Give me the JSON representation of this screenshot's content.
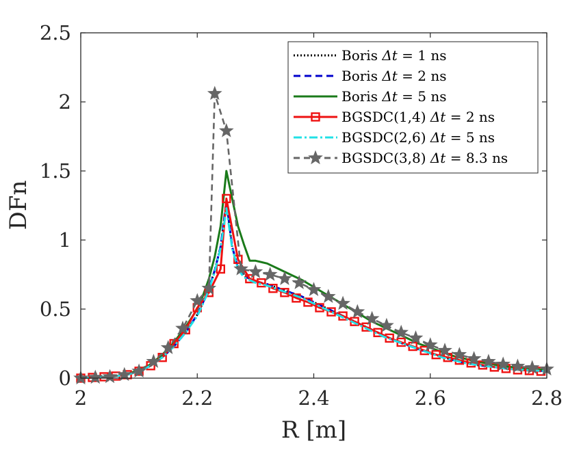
{
  "chart_data": {
    "type": "line",
    "xlabel": "R [m]",
    "ylabel": "DFn",
    "xlim": [
      2,
      2.8
    ],
    "ylim": [
      0,
      2.5
    ],
    "xticks": [
      "2",
      "2.2",
      "2.4",
      "2.6",
      "2.8"
    ],
    "yticks": [
      "0",
      "0.5",
      "1",
      "1.5",
      "2",
      "2.5"
    ],
    "legend_position": "top-right",
    "series": [
      {
        "name": "Boris Δt = 1 ns",
        "label_left": "Boris ",
        "label_math": "Δt",
        "label_right": " = 1 ns",
        "color": "#000000",
        "dash": "2,3",
        "marker": "none",
        "marker_every": 1,
        "x": [
          2.0,
          2.02,
          2.04,
          2.06,
          2.08,
          2.1,
          2.12,
          2.14,
          2.16,
          2.18,
          2.2,
          2.21,
          2.22,
          2.23,
          2.24,
          2.25,
          2.26,
          2.27,
          2.28,
          2.3,
          2.32,
          2.34,
          2.36,
          2.38,
          2.4,
          2.42,
          2.44,
          2.46,
          2.48,
          2.5,
          2.52,
          2.54,
          2.56,
          2.58,
          2.6,
          2.62,
          2.64,
          2.66,
          2.68,
          2.7,
          2.72,
          2.74,
          2.76,
          2.78,
          2.8
        ],
        "y": [
          0.0,
          0.005,
          0.01,
          0.015,
          0.025,
          0.05,
          0.09,
          0.15,
          0.23,
          0.33,
          0.46,
          0.55,
          0.65,
          0.78,
          0.95,
          1.27,
          0.95,
          0.8,
          0.74,
          0.7,
          0.68,
          0.65,
          0.62,
          0.59,
          0.55,
          0.51,
          0.47,
          0.43,
          0.39,
          0.35,
          0.31,
          0.27,
          0.24,
          0.21,
          0.18,
          0.155,
          0.13,
          0.11,
          0.095,
          0.085,
          0.075,
          0.065,
          0.06,
          0.055,
          0.05
        ]
      },
      {
        "name": "Boris Δt = 2 ns",
        "label_left": "Boris ",
        "label_math": "Δt",
        "label_right": " = 2 ns",
        "color": "#0000cc",
        "dash": "10,6",
        "marker": "none",
        "marker_every": 1,
        "x": [
          2.0,
          2.02,
          2.04,
          2.06,
          2.08,
          2.1,
          2.12,
          2.14,
          2.16,
          2.18,
          2.2,
          2.21,
          2.22,
          2.23,
          2.24,
          2.25,
          2.26,
          2.27,
          2.28,
          2.3,
          2.32,
          2.34,
          2.36,
          2.38,
          2.4,
          2.42,
          2.44,
          2.46,
          2.48,
          2.5,
          2.52,
          2.54,
          2.56,
          2.58,
          2.6,
          2.62,
          2.64,
          2.66,
          2.68,
          2.7,
          2.72,
          2.74,
          2.76,
          2.78,
          2.8
        ],
        "y": [
          0.0,
          0.005,
          0.01,
          0.015,
          0.025,
          0.05,
          0.09,
          0.15,
          0.23,
          0.33,
          0.46,
          0.55,
          0.65,
          0.78,
          0.95,
          1.28,
          0.95,
          0.8,
          0.74,
          0.7,
          0.68,
          0.65,
          0.62,
          0.59,
          0.55,
          0.51,
          0.47,
          0.43,
          0.39,
          0.35,
          0.31,
          0.27,
          0.24,
          0.21,
          0.18,
          0.155,
          0.13,
          0.11,
          0.095,
          0.085,
          0.075,
          0.065,
          0.06,
          0.055,
          0.05
        ]
      },
      {
        "name": "Boris Δt = 5 ns",
        "label_left": "Boris ",
        "label_math": "Δt",
        "label_right": " = 5 ns",
        "color": "#1a7a1a",
        "dash": "",
        "marker": "none",
        "marker_every": 1,
        "x": [
          2.0,
          2.02,
          2.04,
          2.06,
          2.08,
          2.1,
          2.12,
          2.14,
          2.16,
          2.18,
          2.2,
          2.21,
          2.22,
          2.23,
          2.24,
          2.25,
          2.26,
          2.27,
          2.28,
          2.29,
          2.3,
          2.32,
          2.34,
          2.36,
          2.38,
          2.4,
          2.42,
          2.44,
          2.46,
          2.48,
          2.5,
          2.52,
          2.54,
          2.56,
          2.58,
          2.6,
          2.62,
          2.64,
          2.66,
          2.68,
          2.7,
          2.72,
          2.74,
          2.76,
          2.78,
          2.8
        ],
        "y": [
          0.0,
          0.005,
          0.01,
          0.015,
          0.03,
          0.06,
          0.1,
          0.17,
          0.26,
          0.37,
          0.5,
          0.6,
          0.72,
          0.88,
          1.1,
          1.5,
          1.3,
          1.1,
          0.97,
          0.85,
          0.85,
          0.83,
          0.79,
          0.75,
          0.71,
          0.66,
          0.61,
          0.56,
          0.51,
          0.46,
          0.41,
          0.37,
          0.33,
          0.29,
          0.25,
          0.22,
          0.19,
          0.16,
          0.14,
          0.12,
          0.105,
          0.09,
          0.08,
          0.07,
          0.065,
          0.06
        ]
      },
      {
        "name": "BGSDC(1,4) Δt = 2 ns",
        "label_left": "BGSDC(1,4) ",
        "label_math": "Δt",
        "label_right": " = 2 ns",
        "color": "#ee1111",
        "dash": "",
        "marker": "square",
        "marker_every": 1,
        "x": [
          2.0,
          2.02,
          2.04,
          2.06,
          2.08,
          2.1,
          2.12,
          2.14,
          2.16,
          2.18,
          2.2,
          2.22,
          2.24,
          2.25,
          2.27,
          2.29,
          2.31,
          2.33,
          2.35,
          2.37,
          2.39,
          2.41,
          2.43,
          2.45,
          2.47,
          2.49,
          2.51,
          2.53,
          2.55,
          2.57,
          2.59,
          2.61,
          2.63,
          2.65,
          2.67,
          2.69,
          2.71,
          2.73,
          2.75,
          2.77,
          2.79
        ],
        "y": [
          0.0,
          0.005,
          0.01,
          0.015,
          0.025,
          0.05,
          0.09,
          0.15,
          0.25,
          0.35,
          0.51,
          0.62,
          0.79,
          1.3,
          0.86,
          0.72,
          0.69,
          0.65,
          0.62,
          0.58,
          0.55,
          0.51,
          0.48,
          0.45,
          0.41,
          0.37,
          0.33,
          0.29,
          0.26,
          0.23,
          0.2,
          0.17,
          0.15,
          0.13,
          0.11,
          0.095,
          0.08,
          0.07,
          0.06,
          0.055,
          0.05
        ]
      },
      {
        "name": "BGSDC(2,6) Δt = 5 ns",
        "label_left": "BGSDC(2,6) ",
        "label_math": "Δt",
        "label_right": " = 5 ns",
        "color": "#22e0e6",
        "dash": "12,4,3,4",
        "marker": "none",
        "marker_every": 1,
        "x": [
          2.0,
          2.02,
          2.04,
          2.06,
          2.08,
          2.1,
          2.12,
          2.14,
          2.16,
          2.18,
          2.2,
          2.21,
          2.22,
          2.23,
          2.24,
          2.25,
          2.26,
          2.27,
          2.28,
          2.3,
          2.32,
          2.34,
          2.36,
          2.38,
          2.4,
          2.42,
          2.44,
          2.46,
          2.48,
          2.5,
          2.52,
          2.54,
          2.56,
          2.58,
          2.6,
          2.62,
          2.64,
          2.66,
          2.68,
          2.7,
          2.72,
          2.74,
          2.76,
          2.78,
          2.8
        ],
        "y": [
          0.0,
          0.005,
          0.01,
          0.015,
          0.025,
          0.05,
          0.09,
          0.15,
          0.23,
          0.33,
          0.45,
          0.54,
          0.64,
          0.77,
          0.94,
          1.23,
          0.94,
          0.79,
          0.73,
          0.69,
          0.67,
          0.64,
          0.61,
          0.58,
          0.54,
          0.5,
          0.46,
          0.42,
          0.38,
          0.34,
          0.3,
          0.27,
          0.24,
          0.21,
          0.18,
          0.15,
          0.13,
          0.11,
          0.095,
          0.085,
          0.075,
          0.065,
          0.06,
          0.055,
          0.05
        ]
      },
      {
        "name": "BGSDC(3,8) Δt = 8.3 ns",
        "label_left": "BGSDC(3,8) ",
        "label_math": "Δt",
        "label_right": " = 8.3 ns",
        "color": "#666666",
        "dash": "9,6",
        "marker": "star",
        "marker_every": 1,
        "x": [
          2.0,
          2.025,
          2.05,
          2.075,
          2.1,
          2.125,
          2.15,
          2.175,
          2.2,
          2.22,
          2.23,
          2.25,
          2.275,
          2.3,
          2.325,
          2.35,
          2.375,
          2.4,
          2.425,
          2.45,
          2.475,
          2.5,
          2.525,
          2.55,
          2.575,
          2.6,
          2.625,
          2.65,
          2.675,
          2.7,
          2.725,
          2.75,
          2.775,
          2.8
        ],
        "y": [
          0.0,
          0.005,
          0.01,
          0.025,
          0.05,
          0.12,
          0.22,
          0.36,
          0.56,
          0.65,
          2.06,
          1.79,
          0.79,
          0.77,
          0.75,
          0.72,
          0.69,
          0.64,
          0.59,
          0.54,
          0.48,
          0.43,
          0.38,
          0.33,
          0.29,
          0.24,
          0.2,
          0.17,
          0.14,
          0.12,
          0.1,
          0.085,
          0.075,
          0.065
        ]
      }
    ]
  }
}
